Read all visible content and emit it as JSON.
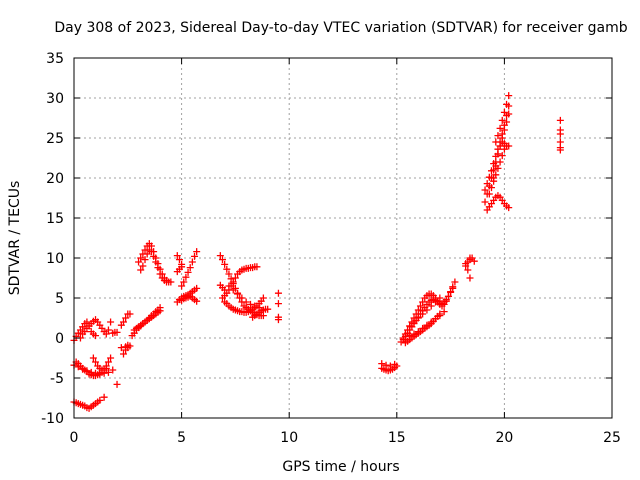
{
  "chart_data": {
    "type": "scatter",
    "title": "Day 308 of 2023, Sidereal Day-to-day VTEC variation (SDTVAR) for receiver gamb",
    "xlabel": "GPS time / hours",
    "ylabel": "SDTVAR / TECUs",
    "xlim": [
      0,
      25
    ],
    "ylim": [
      -10,
      35
    ],
    "xticks": [
      0,
      5,
      10,
      15,
      20,
      25
    ],
    "yticks": [
      -10,
      -5,
      0,
      5,
      10,
      15,
      20,
      25,
      30,
      35
    ],
    "grid": true,
    "marker": "+",
    "color": "#ff0000",
    "series": [
      {
        "x": [
          0.0,
          0.1,
          0.2,
          0.3,
          0.4,
          0.5,
          0.6,
          0.7,
          0.8,
          0.9,
          1.0,
          0.3,
          0.4,
          0.5,
          0.6,
          0.7,
          0.8,
          0.9,
          1.0,
          1.1,
          1.2,
          1.3,
          1.4,
          1.5,
          1.6,
          1.7,
          0.9,
          1.0,
          1.1,
          1.2,
          1.3,
          1.5,
          1.6,
          1.7,
          0.1,
          0.2,
          0.3,
          0.4,
          0.5,
          0.6,
          0.7,
          0.8,
          0.9,
          1.0,
          1.1,
          1.2,
          1.3,
          1.4,
          1.5,
          0.0,
          0.1,
          0.2,
          0.3,
          0.4,
          0.5,
          0.6,
          0.7,
          0.8,
          0.9,
          1.0,
          1.1,
          1.2,
          1.4,
          0.0,
          0.2,
          0.4,
          0.6,
          0.8,
          1.0,
          1.2,
          1.4,
          1.6,
          1.8,
          2.0,
          1.8,
          1.9,
          2.0,
          2.2,
          2.4,
          2.5,
          2.2,
          2.3,
          2.4,
          2.5,
          2.6,
          2.3,
          2.4,
          2.5,
          2.6
        ],
        "y": [
          -0.3,
          0.2,
          0.6,
          1.0,
          1.4,
          1.8,
          2.0,
          1.5,
          0.8,
          0.5,
          0.3,
          0.0,
          0.5,
          0.8,
          1.2,
          1.5,
          1.8,
          2.1,
          2.3,
          2.0,
          1.6,
          1.2,
          0.8,
          0.5,
          1.0,
          2.0,
          -2.5,
          -3.0,
          -3.5,
          -3.8,
          -4.0,
          -3.5,
          -3.0,
          -2.5,
          -3.0,
          -3.2,
          -3.5,
          -3.8,
          -4.0,
          -4.2,
          -4.5,
          -4.6,
          -4.7,
          -4.7,
          -4.6,
          -4.5,
          -4.3,
          -4.0,
          -3.8,
          -8.0,
          -8.1,
          -8.2,
          -8.3,
          -8.4,
          -8.5,
          -8.7,
          -8.8,
          -8.6,
          -8.4,
          -8.2,
          -8.0,
          -7.8,
          -7.4,
          -3.4,
          -3.6,
          -3.9,
          -4.1,
          -4.3,
          -4.4,
          -4.5,
          -4.4,
          -4.3,
          -4.0,
          -5.8,
          0.6,
          0.7,
          0.7,
          -1.2,
          -1.1,
          -0.9,
          1.6,
          2.0,
          2.5,
          3.0,
          3.0,
          -2.0,
          -1.5,
          -1.2,
          -1.0
        ]
      },
      {
        "x": [
          2.7,
          2.8,
          2.9,
          3.0,
          3.1,
          3.2,
          3.3,
          3.4,
          3.5,
          3.6,
          3.7,
          3.8,
          3.9,
          4.0,
          2.8,
          2.9,
          3.0,
          3.1,
          3.2,
          3.3,
          3.4,
          3.5,
          3.6,
          3.7,
          3.8,
          3.9,
          4.0,
          3.0,
          3.1,
          3.2,
          3.3,
          3.4,
          3.5,
          3.6,
          3.7,
          3.8,
          3.9,
          4.0,
          4.1,
          4.2,
          4.3,
          4.4,
          4.5,
          3.1,
          3.2,
          3.3,
          3.4,
          3.5,
          3.6,
          3.7,
          3.8,
          3.9,
          4.0,
          4.1,
          4.2,
          4.3
        ],
        "y": [
          0.3,
          0.6,
          1.0,
          1.3,
          1.5,
          1.8,
          2.0,
          2.2,
          2.5,
          2.8,
          3.0,
          3.3,
          3.5,
          3.8,
          1.0,
          1.2,
          1.4,
          1.6,
          1.8,
          2.0,
          2.2,
          2.4,
          2.6,
          2.8,
          3.0,
          3.2,
          3.4,
          9.5,
          10.0,
          10.5,
          11.0,
          11.5,
          11.8,
          11.5,
          10.8,
          10.0,
          9.3,
          8.6,
          8.0,
          7.5,
          7.2,
          7.0,
          7.0,
          8.5,
          9.0,
          9.8,
          10.5,
          11.0,
          10.8,
          10.2,
          9.5,
          8.8,
          8.0,
          7.5,
          7.2,
          7.0
        ]
      },
      {
        "x": [
          4.8,
          4.9,
          5.0,
          4.8,
          4.9,
          5.0,
          4.8,
          4.9,
          5.0,
          5.0,
          5.1,
          5.2,
          5.3,
          5.4,
          5.5,
          5.6,
          5.7,
          5.0,
          5.1,
          5.2,
          5.3,
          5.4,
          5.5,
          5.6,
          5.7,
          5.1,
          5.2,
          5.3,
          5.4,
          5.5,
          5.6,
          5.7
        ],
        "y": [
          10.3,
          9.8,
          9.2,
          8.3,
          8.6,
          8.9,
          4.5,
          4.8,
          5.0,
          4.7,
          4.9,
          5.0,
          5.1,
          5.2,
          5.0,
          4.8,
          4.6,
          6.5,
          7.0,
          7.6,
          8.2,
          8.8,
          9.5,
          10.2,
          10.8,
          5.2,
          5.3,
          5.4,
          5.6,
          5.8,
          6.0,
          6.2
        ]
      },
      {
        "x": [
          6.8,
          6.9,
          7.0,
          7.1,
          7.2,
          7.3,
          7.4,
          7.5,
          7.6,
          7.7,
          7.8,
          7.9,
          8.0,
          8.1,
          8.2,
          8.3,
          8.4,
          8.5,
          8.6,
          8.7,
          8.8,
          6.9,
          7.0,
          7.1,
          7.2,
          7.3,
          7.4,
          7.5,
          7.6,
          7.7,
          7.8,
          7.9,
          8.0,
          8.1,
          8.2,
          8.3,
          8.4,
          8.5,
          7.0,
          7.1,
          7.2,
          7.3,
          7.4,
          7.5,
          7.6,
          7.7,
          7.8,
          7.9,
          8.0,
          8.1,
          8.2,
          8.3,
          8.4,
          8.5,
          8.6,
          8.7,
          8.8,
          7.2,
          7.4,
          7.6,
          7.8,
          8.0,
          8.2,
          8.4,
          8.6,
          8.8,
          6.8,
          6.9,
          7.0,
          8.3,
          8.4,
          8.5,
          8.6,
          8.7,
          8.8,
          8.9,
          9.0,
          9.5,
          9.5,
          9.5,
          9.5
        ],
        "y": [
          10.3,
          9.8,
          9.2,
          8.6,
          8.0,
          7.4,
          6.8,
          6.2,
          5.6,
          5.0,
          4.5,
          4.0,
          3.8,
          3.6,
          3.4,
          3.2,
          3.0,
          2.9,
          2.8,
          2.8,
          2.8,
          5.0,
          5.3,
          5.6,
          6.0,
          6.5,
          7.0,
          7.5,
          8.0,
          8.3,
          8.5,
          8.6,
          8.7,
          8.7,
          8.8,
          8.8,
          8.9,
          8.9,
          4.5,
          4.3,
          4.0,
          3.8,
          3.6,
          3.5,
          3.4,
          3.3,
          3.3,
          3.2,
          3.2,
          3.3,
          3.4,
          3.6,
          3.8,
          4.0,
          4.3,
          4.6,
          5.0,
          6.5,
          6.0,
          5.5,
          5.0,
          4.5,
          4.2,
          4.0,
          3.8,
          3.5,
          6.6,
          6.3,
          6.0,
          2.6,
          2.8,
          3.0,
          3.2,
          3.4,
          3.5,
          3.6,
          3.6,
          5.6,
          4.3,
          2.6,
          2.3
        ]
      },
      {
        "x": [
          14.3,
          14.4,
          14.5,
          14.6,
          14.7,
          14.8,
          14.9,
          15.0,
          14.3,
          14.5,
          14.7,
          14.9
        ],
        "y": [
          -3.8,
          -3.9,
          -4.0,
          -4.1,
          -4.0,
          -3.9,
          -3.7,
          -3.5,
          -3.2,
          -3.4,
          -3.5,
          -3.3
        ]
      },
      {
        "x": [
          15.2,
          15.3,
          15.4,
          15.5,
          15.6,
          15.7,
          15.8,
          15.9,
          16.0,
          16.1,
          16.2,
          16.3,
          16.4,
          16.5,
          16.6,
          16.7,
          16.8,
          16.9,
          17.0,
          17.1,
          17.2,
          17.3,
          17.4,
          17.5,
          17.6,
          17.7,
          15.3,
          15.4,
          15.5,
          15.6,
          15.7,
          15.8,
          15.9,
          16.0,
          16.1,
          16.2,
          16.3,
          16.4,
          16.5,
          16.6,
          16.7,
          16.8,
          16.9,
          17.0,
          17.1,
          17.2,
          17.3,
          17.4,
          17.5,
          17.6,
          15.6,
          15.8,
          16.0,
          16.2,
          16.4,
          16.6,
          16.8,
          17.0,
          17.2,
          15.6,
          15.8,
          16.0,
          16.2,
          16.4,
          16.6,
          16.8,
          17.0,
          15.4,
          15.5,
          15.6,
          15.7,
          15.8,
          15.9,
          16.0,
          16.1,
          16.2,
          16.3,
          16.4,
          16.5,
          16.6,
          16.7,
          16.8,
          16.9,
          17.0
        ],
        "y": [
          -0.5,
          0.0,
          0.5,
          1.0,
          1.5,
          2.0,
          2.5,
          3.0,
          3.5,
          4.0,
          4.5,
          5.0,
          5.3,
          5.5,
          5.5,
          5.3,
          5.0,
          4.6,
          4.2,
          4.0,
          4.2,
          4.6,
          5.2,
          5.8,
          6.4,
          7.0,
          -0.2,
          0.2,
          0.6,
          1.0,
          1.4,
          1.8,
          2.2,
          2.6,
          3.0,
          3.4,
          3.8,
          4.2,
          4.5,
          4.7,
          4.8,
          4.7,
          4.5,
          4.3,
          4.3,
          4.5,
          4.8,
          5.2,
          5.7,
          6.2,
          0.3,
          0.5,
          0.8,
          1.2,
          1.6,
          2.0,
          2.4,
          2.8,
          3.3,
          1.5,
          2.0,
          2.5,
          3.0,
          3.5,
          4.0,
          4.5,
          5.0,
          -0.6,
          -0.4,
          -0.2,
          0.0,
          0.2,
          0.4,
          0.6,
          0.8,
          1.0,
          1.2,
          1.4,
          1.6,
          1.8,
          2.1,
          2.4,
          2.7,
          3.0
        ]
      },
      {
        "x": [
          18.2,
          18.3,
          18.4,
          18.5,
          18.2,
          18.4,
          18.6,
          18.3,
          18.4
        ],
        "y": [
          9.0,
          9.5,
          10.0,
          10.0,
          9.3,
          9.8,
          9.6,
          8.5,
          7.5
        ]
      },
      {
        "x": [
          19.1,
          19.2,
          19.3,
          19.4,
          19.5,
          19.6,
          19.7,
          19.8,
          19.9,
          20.0,
          20.1,
          20.2,
          19.1,
          19.2,
          19.3,
          19.4,
          19.5,
          19.6,
          19.7,
          19.8,
          19.9,
          20.0,
          20.1,
          20.2,
          19.2,
          19.3,
          19.4,
          19.5,
          19.6,
          19.7,
          19.8,
          19.9,
          20.0,
          20.1,
          20.2,
          19.3,
          19.4,
          19.5,
          19.6,
          19.7,
          19.8,
          19.9,
          20.0,
          20.1,
          20.2,
          19.6,
          19.7,
          19.8,
          19.9,
          20.0,
          20.1,
          20.2,
          19.5,
          19.6,
          19.7,
          19.8,
          19.9,
          20.0,
          20.1
        ],
        "y": [
          17.0,
          18.0,
          19.0,
          20.0,
          21.0,
          22.0,
          23.0,
          24.0,
          25.0,
          26.0,
          27.0,
          28.0,
          18.5,
          19.3,
          20.1,
          20.9,
          21.8,
          22.7,
          23.6,
          24.5,
          25.5,
          26.6,
          27.8,
          29.0,
          16.0,
          16.4,
          16.8,
          17.2,
          17.6,
          17.8,
          17.6,
          17.2,
          16.8,
          16.5,
          16.3,
          18.0,
          18.8,
          19.6,
          20.4,
          21.2,
          22.0,
          22.8,
          23.6,
          24.0,
          24.0,
          24.5,
          25.3,
          26.2,
          27.2,
          28.2,
          29.2,
          30.3,
          20.0,
          21.5,
          23.0,
          24.0,
          24.5,
          24.3,
          24.0
        ]
      },
      {
        "x": [
          22.6,
          22.6,
          22.6,
          22.6,
          22.6,
          22.6
        ],
        "y": [
          27.2,
          26.0,
          25.5,
          24.5,
          23.8,
          23.5
        ]
      }
    ]
  }
}
